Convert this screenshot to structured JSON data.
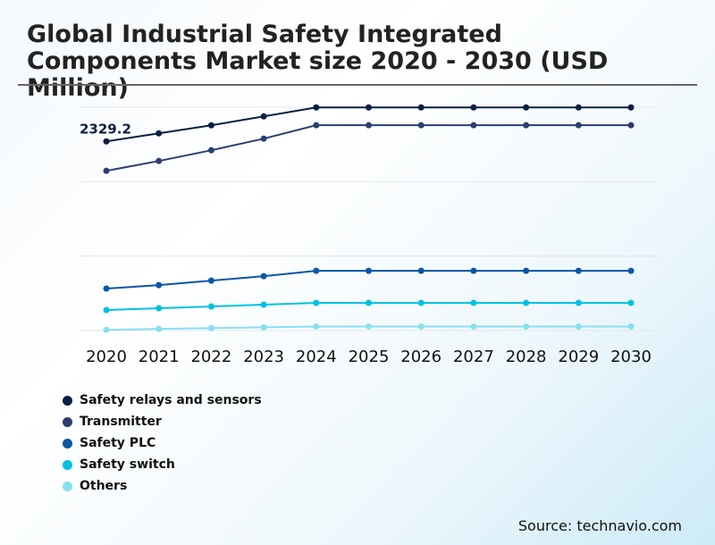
{
  "chart_data": {
    "type": "line",
    "title": "Global Industrial Safety Integrated Components Market size 2020 - 2030 (USD Million)",
    "xlabel": "",
    "ylabel": "",
    "x": [
      "2020",
      "2021",
      "2022",
      "2023",
      "2024",
      "2025",
      "2026",
      "2027",
      "2028",
      "2029",
      "2030"
    ],
    "ylim": [
      0,
      2750
    ],
    "grid": true,
    "legend_position": "bottom-left",
    "annotations": [
      {
        "series": "Safety relays and sensors",
        "x": "2020",
        "text": "2329.2"
      }
    ],
    "series": [
      {
        "name": "Safety relays and sensors",
        "color": "#0b1f45",
        "values": [
          2329.2,
          2428,
          2527,
          2637,
          2747,
          2747,
          2747,
          2747,
          2747,
          2747,
          2747
        ]
      },
      {
        "name": "Transmitter",
        "color": "#2c3e70",
        "values": [
          1967,
          2088,
          2220,
          2363,
          2528,
          2528,
          2528,
          2528,
          2528,
          2528,
          2528
        ]
      },
      {
        "name": "Safety PLC",
        "color": "#0b57a4",
        "values": [
          517,
          560,
          615,
          670,
          736,
          736,
          736,
          736,
          736,
          736,
          736
        ]
      },
      {
        "name": "Safety switch",
        "color": "#00c2e0",
        "values": [
          253,
          275,
          297,
          319,
          341,
          341,
          341,
          341,
          341,
          341,
          341
        ]
      },
      {
        "name": "Others",
        "color": "#88dff0",
        "values": [
          10,
          20,
          30,
          40,
          50,
          50,
          50,
          50,
          50,
          50,
          50
        ]
      }
    ]
  },
  "source": "Source: technavio.com"
}
